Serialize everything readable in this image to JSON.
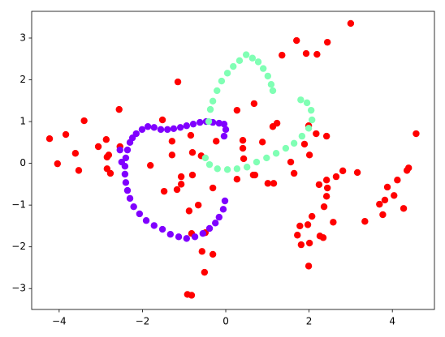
{
  "chart_data": {
    "type": "scatter",
    "xlim": [
      -4.66,
      5.01
    ],
    "ylim": [
      -3.5,
      3.64
    ],
    "xticks": [
      {
        "value": -4,
        "label": "−4"
      },
      {
        "value": -2,
        "label": "−2"
      },
      0,
      2,
      4
    ],
    "yticks": [
      {
        "value": -3,
        "label": "−3"
      },
      {
        "value": -2,
        "label": "−2"
      },
      {
        "value": -1,
        "label": "−1"
      },
      0,
      1,
      2,
      3
    ],
    "series": [
      {
        "color": "#ff0000",
        "x": [
          -4.23,
          -4.04,
          -3.84,
          -3.61,
          -3.53,
          -3.4,
          -3.06,
          -2.87,
          -2.85,
          -2.81,
          -2.85,
          -2.77,
          -2.56,
          -2.54,
          -1.81,
          -1.52,
          -1.15,
          -1.29,
          -1.29,
          -1.17,
          -1.07,
          -1.07,
          -1.48,
          -0.84,
          -0.8,
          -0.8,
          -0.59,
          -0.66,
          -0.88,
          -0.31,
          -0.49,
          -0.57,
          -0.31,
          -0.51,
          -0.92,
          -0.82,
          -0.82,
          -0.23,
          0.27,
          0.27,
          0.41,
          0.41,
          0.43,
          0.66,
          0.68,
          0.7,
          0.88,
          1.13,
          1.23,
          1.01,
          1.15,
          1.35,
          1.56,
          1.7,
          1.93,
          2.19,
          2.44,
          3.0,
          1.89,
          2.01,
          1.99,
          2.17,
          2.42,
          1.64,
          2.24,
          2.42,
          2.44,
          2.42,
          2.65,
          2.81,
          3.16,
          2.36,
          2.58,
          2.07,
          1.97,
          1.78,
          1.72,
          1.81,
          2.01,
          2.26,
          2.34,
          1.99,
          3.34,
          3.69,
          3.77,
          3.82,
          3.88,
          4.04,
          4.12,
          4.27,
          4.35,
          4.39,
          4.57
        ],
        "y": [
          0.59,
          -0.01,
          0.69,
          0.24,
          -0.17,
          1.02,
          0.4,
          0.57,
          0.15,
          0.2,
          -0.13,
          -0.24,
          1.29,
          0.4,
          -0.05,
          1.04,
          1.95,
          0.53,
          0.2,
          -0.63,
          -0.32,
          -0.5,
          -0.67,
          0.67,
          0.26,
          -0.28,
          0.18,
          -1.0,
          -1.14,
          -0.59,
          -1.66,
          -2.11,
          -2.18,
          -2.61,
          -3.14,
          -3.16,
          -1.68,
          0.53,
          1.27,
          -0.38,
          0.55,
          0.36,
          0.11,
          -0.28,
          1.43,
          -0.28,
          0.51,
          0.88,
          0.96,
          -0.48,
          -0.48,
          2.59,
          0.03,
          2.94,
          2.63,
          2.61,
          2.9,
          3.35,
          0.46,
          0.2,
          0.9,
          0.71,
          0.65,
          -0.24,
          -0.51,
          -0.4,
          -0.59,
          -0.79,
          -0.32,
          -0.18,
          -0.22,
          -1.04,
          -1.41,
          -1.27,
          -1.47,
          -1.5,
          -1.72,
          -1.95,
          -1.91,
          -1.74,
          -1.78,
          -2.46,
          -1.39,
          -0.98,
          -1.23,
          -0.88,
          -0.57,
          -0.77,
          -0.4,
          -1.08,
          -0.17,
          -0.11,
          0.71
        ]
      },
      {
        "color": "#8000ff",
        "x": [
          -0.02,
          -0.06,
          -0.16,
          -0.25,
          -0.39,
          -0.55,
          -0.74,
          -0.94,
          -1.13,
          -1.33,
          -1.52,
          -1.72,
          -1.91,
          -2.07,
          -2.21,
          -2.3,
          -2.36,
          -2.4,
          -2.42,
          -2.42,
          -2.4,
          -2.36,
          -2.3,
          -2.24,
          -2.15,
          -2.01,
          -1.87,
          -1.72,
          -1.56,
          -1.4,
          -1.25,
          -1.09,
          -0.94,
          -0.78,
          -0.62,
          -0.47,
          -0.31,
          -0.16,
          -0.04,
          0.0,
          -0.04,
          -2.54,
          -2.5
        ],
        "y": [
          -0.9,
          -1.1,
          -1.29,
          -1.43,
          -1.56,
          -1.68,
          -1.76,
          -1.8,
          -1.76,
          -1.7,
          -1.58,
          -1.49,
          -1.37,
          -1.21,
          -1.04,
          -0.84,
          -0.65,
          -0.46,
          -0.26,
          -0.07,
          0.13,
          0.32,
          0.5,
          0.61,
          0.71,
          0.81,
          0.88,
          0.86,
          0.81,
          0.81,
          0.83,
          0.86,
          0.9,
          0.94,
          0.98,
          1.0,
          0.98,
          0.96,
          0.94,
          0.81,
          0.65,
          0.32,
          0.03
        ]
      },
      {
        "color": "#80ffb4",
        "x": [
          -0.49,
          -0.39,
          -0.2,
          0.04,
          0.27,
          0.51,
          0.74,
          0.98,
          1.21,
          1.44,
          1.64,
          1.83,
          1.99,
          2.07,
          2.05,
          1.95,
          1.8,
          -0.41,
          -0.37,
          -0.31,
          -0.21,
          -0.1,
          0.04,
          0.18,
          0.33,
          0.49,
          0.64,
          0.78,
          0.9,
          1.01,
          1.09,
          1.13
        ],
        "y": [
          0.13,
          -0.03,
          -0.13,
          -0.15,
          -0.13,
          -0.09,
          0.03,
          0.13,
          0.24,
          0.36,
          0.48,
          0.65,
          0.84,
          1.04,
          1.27,
          1.45,
          1.52,
          1.0,
          1.29,
          1.49,
          1.74,
          1.97,
          2.16,
          2.32,
          2.46,
          2.6,
          2.52,
          2.43,
          2.27,
          2.09,
          1.89,
          1.74
        ]
      }
    ]
  }
}
